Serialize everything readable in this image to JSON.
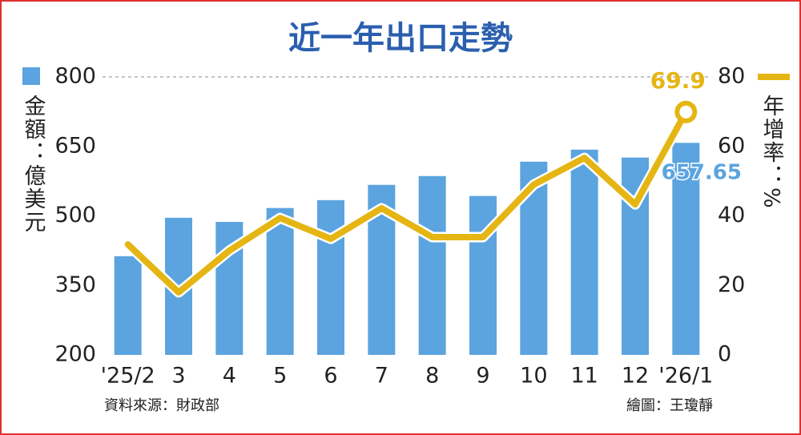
{
  "chart_data": {
    "type": "combo",
    "title": "近一年出口走勢",
    "categories": [
      "'25/2",
      "3",
      "4",
      "5",
      "6",
      "7",
      "8",
      "9",
      "10",
      "11",
      "12",
      "'26/1"
    ],
    "series": [
      {
        "name": "金額：億美元",
        "type": "bar",
        "color": "#5ba4df",
        "label_last": true,
        "values": [
          413,
          496,
          487,
          517,
          534,
          567,
          586,
          543,
          617,
          643,
          626,
          657.65
        ]
      },
      {
        "name": "年增率：%",
        "type": "line",
        "axis": "y2",
        "color": "#e5b514",
        "label_last": true,
        "values": [
          31.8,
          18,
          30,
          39.4,
          33.4,
          42.2,
          33.9,
          33.9,
          49,
          56.7,
          43.3,
          69.9
        ]
      }
    ],
    "ylim": [
      200,
      800
    ],
    "yticks": [
      200,
      350,
      500,
      650,
      800
    ],
    "y2lim": [
      0,
      80
    ],
    "y2ticks": [
      0,
      20,
      40,
      60,
      80
    ],
    "source": "資料來源：財政部",
    "credit": "繪圖：王瓊靜"
  }
}
